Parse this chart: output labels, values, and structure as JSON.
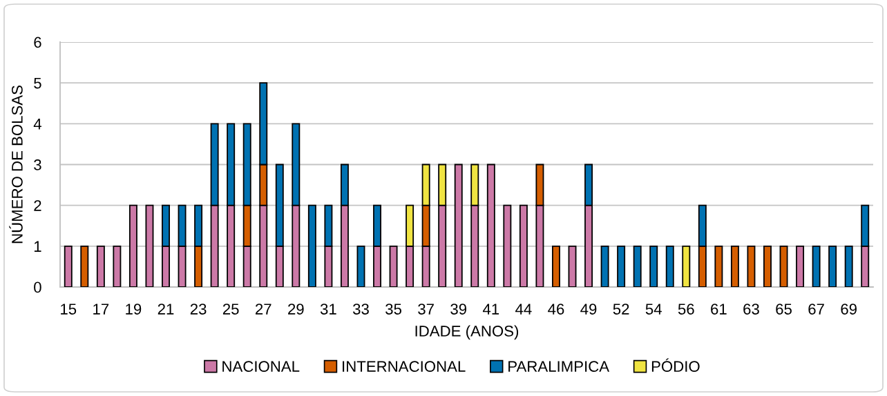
{
  "chart_data": {
    "type": "bar",
    "stacked": true,
    "xlabel": "IDADE (ANOS)",
    "ylabel": "NÚMERO DE BOLSAS",
    "categories": [
      "15",
      null,
      "17",
      null,
      "19",
      null,
      "21",
      null,
      "23",
      null,
      "25",
      null,
      "27",
      null,
      "29",
      null,
      "31",
      null,
      "33",
      null,
      "35",
      null,
      "37",
      null,
      "39",
      null,
      "41",
      null,
      "44",
      null,
      "46",
      null,
      "49",
      null,
      "52",
      null,
      "54",
      null,
      "56",
      null,
      "61",
      null,
      "63",
      null,
      "65",
      null,
      "67",
      null,
      "69",
      null
    ],
    "series": [
      {
        "name": "NACIONAL",
        "color": "#cc79a7",
        "values": [
          1,
          null,
          1,
          1,
          2,
          2,
          1,
          1,
          null,
          2,
          2,
          1,
          2,
          1,
          2,
          null,
          1,
          2,
          null,
          1,
          1,
          1,
          1,
          2,
          3,
          2,
          3,
          2,
          2,
          2,
          null,
          1,
          2,
          null,
          null,
          null,
          null,
          null,
          null,
          null,
          null,
          null,
          null,
          null,
          null,
          1,
          null,
          null,
          null,
          1
        ]
      },
      {
        "name": "INTERNACIONAL",
        "color": "#d55e00",
        "values": [
          null,
          1,
          null,
          null,
          null,
          null,
          null,
          null,
          1,
          null,
          null,
          1,
          1,
          null,
          null,
          null,
          null,
          null,
          null,
          null,
          null,
          null,
          1,
          null,
          null,
          null,
          null,
          null,
          null,
          1,
          1,
          null,
          null,
          null,
          null,
          null,
          null,
          null,
          null,
          1,
          1,
          1,
          1,
          1,
          1,
          null,
          null,
          null,
          null,
          null
        ]
      },
      {
        "name": "PARALIMPICA",
        "color": "#0072b2",
        "values": [
          null,
          null,
          null,
          null,
          null,
          null,
          1,
          1,
          1,
          2,
          2,
          2,
          2,
          2,
          2,
          2,
          1,
          1,
          1,
          1,
          null,
          null,
          null,
          null,
          null,
          null,
          null,
          null,
          null,
          null,
          null,
          null,
          1,
          1,
          1,
          1,
          1,
          1,
          null,
          1,
          null,
          null,
          null,
          null,
          null,
          null,
          1,
          1,
          1,
          1
        ]
      },
      {
        "name": "PÓDIO",
        "color": "#f0e442",
        "values": [
          null,
          null,
          null,
          null,
          null,
          null,
          null,
          null,
          null,
          null,
          null,
          null,
          null,
          null,
          null,
          null,
          null,
          null,
          null,
          null,
          null,
          1,
          1,
          1,
          null,
          1,
          null,
          null,
          null,
          null,
          null,
          null,
          null,
          null,
          null,
          null,
          null,
          null,
          1,
          null,
          null,
          null,
          null,
          null,
          null,
          null,
          null,
          null,
          null,
          null
        ]
      }
    ],
    "ylim": [
      0,
      6
    ],
    "yticks": [
      0,
      1,
      2,
      3,
      4,
      5,
      6
    ],
    "grid": "y",
    "legend": "bottom"
  }
}
